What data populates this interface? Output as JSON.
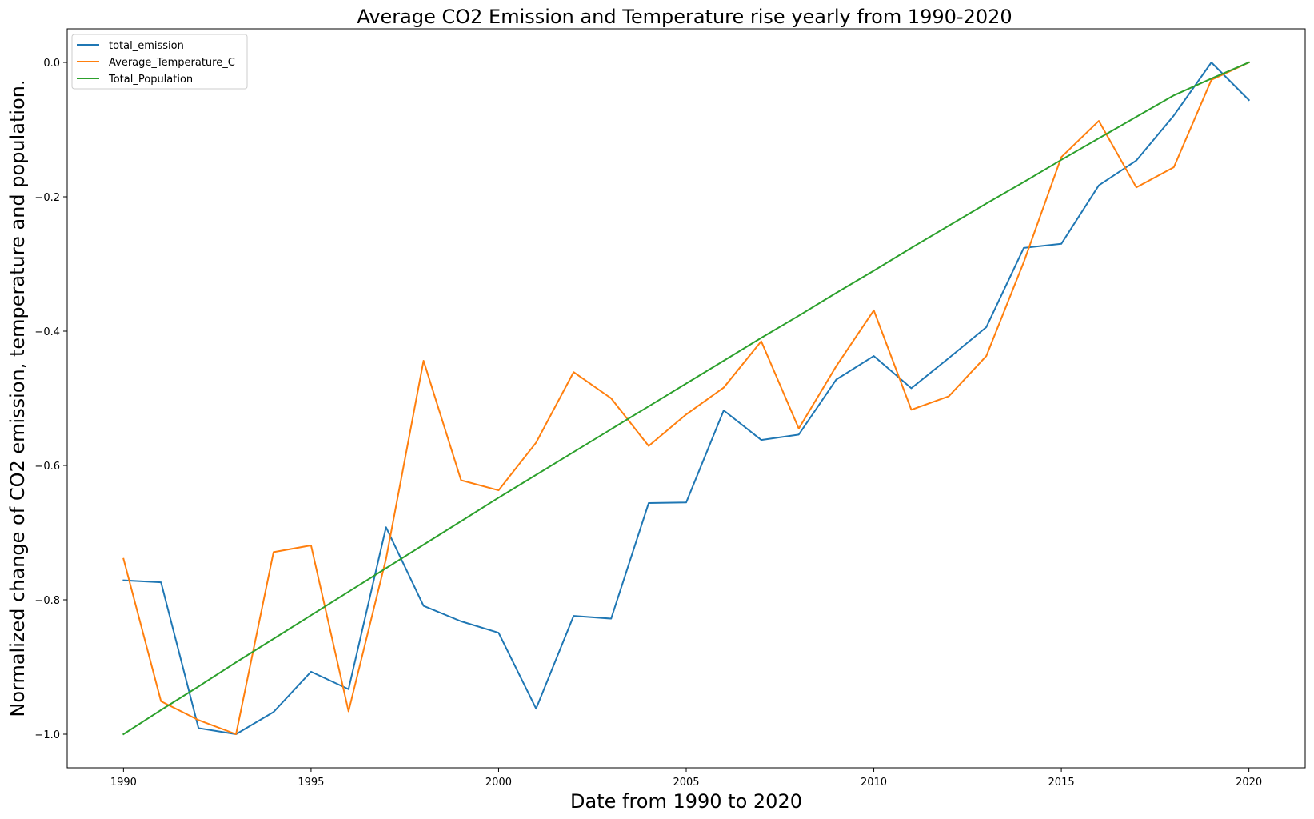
{
  "chart_data": {
    "type": "line",
    "title": "Average CO2 Emission and Temperature rise yearly from 1990-2020",
    "xlabel": "Date from 1990 to 2020",
    "ylabel": "Normalized change of CO2 emission, temperature and population.",
    "xlim": [
      1988.5,
      2021.5
    ],
    "ylim": [
      -1.05,
      0.05
    ],
    "grid": false,
    "legend_position": "top-left",
    "x": [
      1990,
      1991,
      1992,
      1993,
      1994,
      1995,
      1996,
      1997,
      1998,
      1999,
      2000,
      2001,
      2002,
      2003,
      2004,
      2005,
      2006,
      2007,
      2008,
      2009,
      2010,
      2011,
      2012,
      2013,
      2014,
      2015,
      2016,
      2017,
      2018,
      2019,
      2020
    ],
    "x_ticks": [
      1990,
      1995,
      2000,
      2005,
      2010,
      2015,
      2020
    ],
    "x_tick_labels": [
      "1990",
      "1995",
      "2000",
      "2005",
      "2010",
      "2015",
      "2020"
    ],
    "y_ticks": [
      0.0,
      -0.2,
      -0.4,
      -0.6,
      -0.8,
      -1.0
    ],
    "y_tick_labels": [
      "0.0",
      "−0.2",
      "−0.4",
      "−0.6",
      "−0.8",
      "−1.0"
    ],
    "series": [
      {
        "name": "total_emission",
        "color": "#1f77b4",
        "values": [
          -0.771,
          -0.774,
          -0.991,
          -1.0,
          -0.967,
          -0.907,
          -0.933,
          -0.692,
          -0.809,
          -0.832,
          -0.849,
          -0.962,
          -0.824,
          -0.828,
          -0.656,
          -0.655,
          -0.518,
          -0.562,
          -0.554,
          -0.472,
          -0.437,
          -0.485,
          -0.44,
          -0.394,
          -0.276,
          -0.27,
          -0.183,
          -0.146,
          -0.079,
          0.0,
          -0.056
        ]
      },
      {
        "name": "Average_Temperature_C",
        "color": "#ff7f0e",
        "values": [
          -0.739,
          -0.951,
          -0.979,
          -1.0,
          -0.729,
          -0.719,
          -0.966,
          -0.739,
          -0.444,
          -0.622,
          -0.637,
          -0.566,
          -0.461,
          -0.5,
          -0.571,
          -0.524,
          -0.484,
          -0.415,
          -0.545,
          -0.452,
          -0.369,
          -0.517,
          -0.497,
          -0.437,
          -0.297,
          -0.141,
          -0.087,
          -0.186,
          -0.156,
          -0.026,
          0.0
        ]
      },
      {
        "name": "Total_Population",
        "color": "#2ca02c",
        "values": [
          -1.0,
          -0.964,
          -0.929,
          -0.893,
          -0.858,
          -0.823,
          -0.788,
          -0.753,
          -0.718,
          -0.683,
          -0.648,
          -0.614,
          -0.58,
          -0.546,
          -0.512,
          -0.478,
          -0.444,
          -0.41,
          -0.377,
          -0.343,
          -0.31,
          -0.276,
          -0.243,
          -0.21,
          -0.178,
          -0.145,
          -0.113,
          -0.081,
          -0.049,
          -0.024,
          0.0
        ]
      }
    ]
  }
}
